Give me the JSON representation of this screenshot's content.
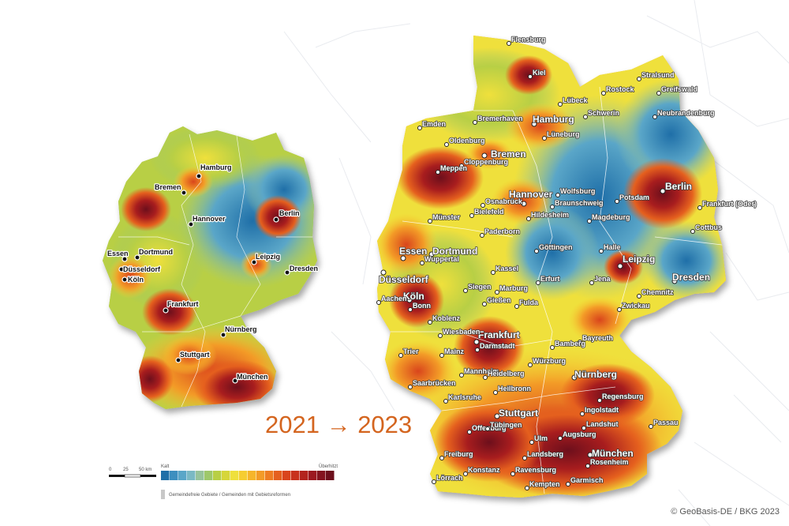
{
  "title_label": "2021 → 2023",
  "copyright": "© GeoBasis-DE / BKG 2023",
  "legend": {
    "scalebar_ticks": [
      "0",
      "25",
      "50 km"
    ],
    "scale_low": "Kalt",
    "scale_high": "Überhitzt",
    "nodata_label": "Gemeindefreie Gebiete / Gemeinden mit Gebietsreformen",
    "colors": [
      "#1f6fa8",
      "#3d8fbf",
      "#5aa6c8",
      "#7bb9c4",
      "#97c39b",
      "#9ec86a",
      "#b8cf45",
      "#d6d63a",
      "#efe03c",
      "#f6cd32",
      "#f6b52b",
      "#f39b27",
      "#ee7d22",
      "#e5601e",
      "#d9451c",
      "#c8321c",
      "#b3231e",
      "#9c1820",
      "#84131f",
      "#6d0f1c"
    ],
    "nodata_color": "#c8c8c8"
  },
  "map_2021": {
    "cities": [
      "Hamburg",
      "Bremen",
      "Hannover",
      "Berlin",
      "Essen",
      "Dortmund",
      "Düsseldorf",
      "Köln",
      "Leipzig",
      "Dresden",
      "Frankfurt",
      "Nürnberg",
      "Stuttgart",
      "München"
    ]
  },
  "map_2023": {
    "major_cities": [
      "Hamburg",
      "Bremen",
      "Hannover",
      "Berlin",
      "Essen",
      "Dortmund",
      "Düsseldorf",
      "Köln",
      "Leipzig",
      "Dresden",
      "Frankfurt",
      "Nürnberg",
      "Stuttgart",
      "München"
    ],
    "cities": [
      "Flensburg",
      "Kiel",
      "Stralsund",
      "Rostock",
      "Greifswald",
      "Lübeck",
      "Bremerhaven",
      "Schwerin",
      "Neubrandenburg",
      "Emden",
      "Oldenburg",
      "Lüneburg",
      "Cloppenburg",
      "Meppen",
      "Wolfsburg",
      "Potsdam",
      "Frankfurt (Oder)",
      "Osnabrück",
      "Braunschweig",
      "Magdeburg",
      "Münster",
      "Bielefeld",
      "Hildesheim",
      "Cottbus",
      "Paderborn",
      "Wuppertal",
      "Göttingen",
      "Halle",
      "Kassel",
      "Siegen",
      "Erfurt",
      "Jena",
      "Chemnitz",
      "Aachen",
      "Bonn",
      "Marburg",
      "Gießen",
      "Fulda",
      "Zwickau",
      "Koblenz",
      "Wiesbaden",
      "Darmstadt",
      "Bayreuth",
      "Bamberg",
      "Trier",
      "Mainz",
      "Würzburg",
      "Mannheim",
      "Heidelberg",
      "Regensburg",
      "Saarbrücken",
      "Heilbronn",
      "Karlsruhe",
      "Ingolstadt",
      "Passau",
      "Landshut",
      "Offenburg",
      "Tübingen",
      "Augsburg",
      "Ulm",
      "Landsberg",
      "Freiburg",
      "Rosenheim",
      "Konstanz",
      "Ravensburg",
      "Garmisch",
      "Lörrach",
      "Kempten"
    ]
  }
}
